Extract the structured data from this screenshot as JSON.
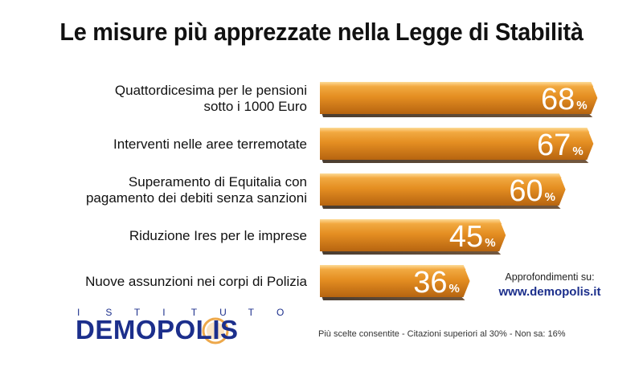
{
  "chart_data": {
    "type": "bar",
    "orientation": "horizontal",
    "title": "Le misure più apprezzate nella Legge di Stabilità",
    "categories": [
      [
        "Quattordicesima per le pensioni",
        "sotto i 1000 Euro"
      ],
      [
        "Interventi nelle aree terremotate"
      ],
      [
        "Superamento di Equitalia con",
        "pagamento dei debiti senza sanzioni"
      ],
      [
        "Riduzione Ires per le imprese"
      ],
      [
        "Nuove assunzioni nei corpi di Polizia"
      ]
    ],
    "values": [
      68,
      67,
      60,
      45,
      36
    ],
    "value_suffix": "%",
    "xlim": [
      0,
      70
    ],
    "grid": false,
    "legend": "none",
    "colors": {
      "bar_light": "#f6b04a",
      "bar_mid": "#e08a1e",
      "bar_dark": "#b4610d",
      "bar_top_light": "#fcd27e",
      "bar_shadow": "#3a2412",
      "value_text": "#ffffff"
    }
  },
  "info": {
    "more_label": "Approfondimenti su:",
    "more_link": "www.demopolis.it",
    "footnote": "Più scelte consentite - Citazioni superiori al 30% - Non sa: 16%"
  },
  "logo": {
    "top_letters": [
      "I",
      "S",
      "T",
      "I",
      "T",
      "U",
      "T",
      "O"
    ],
    "name": "DEMOPOLIS",
    "colors": {
      "text": "#1c2f8c",
      "swoosh": "#e8921e"
    }
  }
}
